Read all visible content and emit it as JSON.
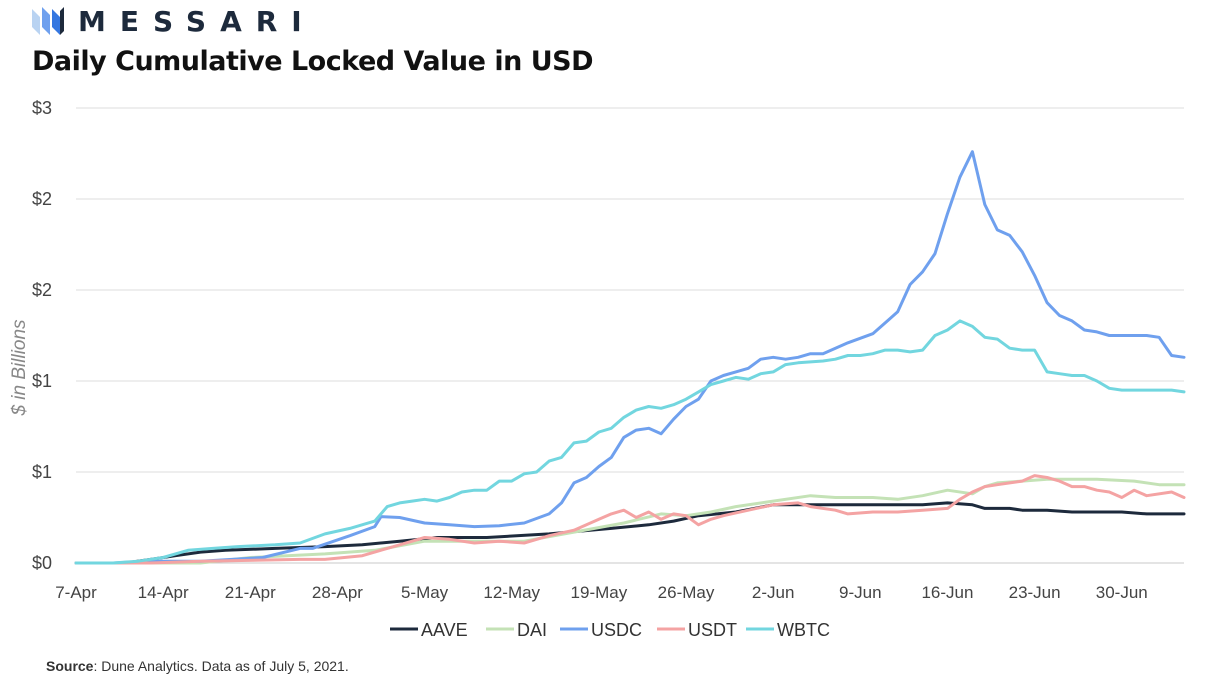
{
  "brand": {
    "name": "MESSARI",
    "logo_icon": "messari-logo-icon"
  },
  "title": "Daily Cumulative Locked Value in USD",
  "source": {
    "label": "Source",
    "text": ": Dune Analytics. Data as of July 5, 2021."
  },
  "colors": {
    "AAVE": "#1d2a3c",
    "DAI": "#c4e2b6",
    "USDC": "#6fa0ee",
    "USDT": "#f4a3a3",
    "WBTC": "#72d6df",
    "grid": "#dedede",
    "axis": "#c8c8c8"
  },
  "chart_data": {
    "type": "line",
    "title": "Daily Cumulative Locked Value in USD",
    "xlabel": "",
    "ylabel": "$ in Billions",
    "ylim": [
      0,
      2.5
    ],
    "y_ticks": [
      0,
      0.5,
      1.0,
      1.5,
      2.0,
      2.5
    ],
    "y_tick_labels": [
      "$0",
      "$1",
      "$1",
      "$2",
      "$2",
      "$3"
    ],
    "x_ticks": [
      0,
      7,
      14,
      21,
      28,
      35,
      42,
      49,
      56,
      63,
      70,
      77,
      84
    ],
    "x_tick_labels": [
      "7-Apr",
      "14-Apr",
      "21-Apr",
      "28-Apr",
      "5-May",
      "12-May",
      "19-May",
      "26-May",
      "2-Jun",
      "9-Jun",
      "16-Jun",
      "23-Jun",
      "30-Jun"
    ],
    "x_range": [
      0,
      89
    ],
    "legend": [
      "AAVE",
      "DAI",
      "USDC",
      "USDT",
      "WBTC"
    ],
    "legend_position": "bottom",
    "series": [
      {
        "name": "AAVE",
        "color": "#1d2a3c",
        "points": [
          [
            0,
            0
          ],
          [
            4,
            0
          ],
          [
            6,
            0.02
          ],
          [
            8,
            0.04
          ],
          [
            10,
            0.06
          ],
          [
            12,
            0.07
          ],
          [
            16,
            0.08
          ],
          [
            20,
            0.09
          ],
          [
            23,
            0.1
          ],
          [
            26,
            0.12
          ],
          [
            29,
            0.14
          ],
          [
            33,
            0.14
          ],
          [
            38,
            0.16
          ],
          [
            43,
            0.19
          ],
          [
            46,
            0.21
          ],
          [
            48,
            0.23
          ],
          [
            50,
            0.26
          ],
          [
            53,
            0.28
          ],
          [
            56,
            0.32
          ],
          [
            60,
            0.32
          ],
          [
            64,
            0.32
          ],
          [
            68,
            0.32
          ],
          [
            70,
            0.33
          ],
          [
            72,
            0.32
          ],
          [
            73,
            0.3
          ],
          [
            75,
            0.3
          ],
          [
            76,
            0.29
          ],
          [
            78,
            0.29
          ],
          [
            80,
            0.28
          ],
          [
            84,
            0.28
          ],
          [
            86,
            0.27
          ],
          [
            88,
            0.27
          ],
          [
            89,
            0.27
          ]
        ]
      },
      {
        "name": "DAI",
        "color": "#c4e2b6",
        "points": [
          [
            0,
            0
          ],
          [
            10,
            0
          ],
          [
            14,
            0.03
          ],
          [
            20,
            0.05
          ],
          [
            24,
            0.07
          ],
          [
            28,
            0.12
          ],
          [
            33,
            0.12
          ],
          [
            36,
            0.12
          ],
          [
            40,
            0.17
          ],
          [
            44,
            0.22
          ],
          [
            47,
            0.27
          ],
          [
            49,
            0.26
          ],
          [
            51,
            0.28
          ],
          [
            53,
            0.31
          ],
          [
            56,
            0.34
          ],
          [
            59,
            0.37
          ],
          [
            61,
            0.36
          ],
          [
            64,
            0.36
          ],
          [
            66,
            0.35
          ],
          [
            68,
            0.37
          ],
          [
            70,
            0.4
          ],
          [
            72,
            0.38
          ],
          [
            73,
            0.42
          ],
          [
            74,
            0.44
          ],
          [
            76,
            0.45
          ],
          [
            78,
            0.46
          ],
          [
            82,
            0.46
          ],
          [
            85,
            0.45
          ],
          [
            87,
            0.43
          ],
          [
            89,
            0.43
          ]
        ]
      },
      {
        "name": "USDC",
        "color": "#6fa0ee",
        "points": [
          [
            0,
            0
          ],
          [
            3,
            0
          ],
          [
            6,
            0.01
          ],
          [
            10,
            0.01
          ],
          [
            15,
            0.03
          ],
          [
            18,
            0.08
          ],
          [
            19,
            0.08
          ],
          [
            22,
            0.15
          ],
          [
            24,
            0.2
          ],
          [
            24.5,
            0.255
          ],
          [
            26,
            0.25
          ],
          [
            28,
            0.22
          ],
          [
            30,
            0.21
          ],
          [
            32,
            0.2
          ],
          [
            34,
            0.205
          ],
          [
            36,
            0.22
          ],
          [
            38,
            0.27
          ],
          [
            39,
            0.33
          ],
          [
            40,
            0.44
          ],
          [
            41,
            0.47
          ],
          [
            42,
            0.53
          ],
          [
            43,
            0.58
          ],
          [
            44,
            0.69
          ],
          [
            45,
            0.73
          ],
          [
            46,
            0.74
          ],
          [
            47,
            0.71
          ],
          [
            48,
            0.79
          ],
          [
            49,
            0.86
          ],
          [
            50,
            0.9
          ],
          [
            51,
            1.0
          ],
          [
            52,
            1.03
          ],
          [
            53,
            1.05
          ],
          [
            54,
            1.07
          ],
          [
            55,
            1.12
          ],
          [
            56,
            1.13
          ],
          [
            57,
            1.12
          ],
          [
            58,
            1.13
          ],
          [
            59,
            1.15
          ],
          [
            60,
            1.15
          ],
          [
            62,
            1.21
          ],
          [
            64,
            1.26
          ],
          [
            66,
            1.38
          ],
          [
            67,
            1.53
          ],
          [
            68,
            1.6
          ],
          [
            69,
            1.7
          ],
          [
            70,
            1.92
          ],
          [
            71,
            2.12
          ],
          [
            72,
            2.26
          ],
          [
            73,
            1.97
          ],
          [
            74,
            1.83
          ],
          [
            75,
            1.8
          ],
          [
            76,
            1.71
          ],
          [
            77,
            1.58
          ],
          [
            78,
            1.43
          ],
          [
            79,
            1.36
          ],
          [
            80,
            1.33
          ],
          [
            81,
            1.28
          ],
          [
            82,
            1.27
          ],
          [
            83,
            1.25
          ],
          [
            84,
            1.25
          ],
          [
            86,
            1.25
          ],
          [
            87,
            1.24
          ],
          [
            88,
            1.14
          ],
          [
            89,
            1.13
          ]
        ]
      },
      {
        "name": "USDT",
        "color": "#f4a3a3",
        "points": [
          [
            0,
            0
          ],
          [
            6,
            0
          ],
          [
            10,
            0.01
          ],
          [
            18,
            0.02
          ],
          [
            20,
            0.02
          ],
          [
            23,
            0.04
          ],
          [
            25,
            0.08
          ],
          [
            27,
            0.12
          ],
          [
            28,
            0.14
          ],
          [
            30,
            0.13
          ],
          [
            32,
            0.11
          ],
          [
            34,
            0.12
          ],
          [
            36,
            0.11
          ],
          [
            38,
            0.15
          ],
          [
            40,
            0.18
          ],
          [
            42,
            0.24
          ],
          [
            43,
            0.27
          ],
          [
            44,
            0.29
          ],
          [
            45,
            0.25
          ],
          [
            46,
            0.28
          ],
          [
            47,
            0.24
          ],
          [
            48,
            0.27
          ],
          [
            49,
            0.26
          ],
          [
            50,
            0.21
          ],
          [
            51,
            0.24
          ],
          [
            52,
            0.26
          ],
          [
            54,
            0.29
          ],
          [
            56,
            0.32
          ],
          [
            58,
            0.33
          ],
          [
            59,
            0.31
          ],
          [
            61,
            0.29
          ],
          [
            62,
            0.27
          ],
          [
            64,
            0.28
          ],
          [
            66,
            0.28
          ],
          [
            68,
            0.29
          ],
          [
            70,
            0.3
          ],
          [
            71,
            0.35
          ],
          [
            72,
            0.39
          ],
          [
            73,
            0.42
          ],
          [
            74,
            0.43
          ],
          [
            75,
            0.44
          ],
          [
            76,
            0.45
          ],
          [
            77,
            0.48
          ],
          [
            78,
            0.47
          ],
          [
            79,
            0.45
          ],
          [
            80,
            0.42
          ],
          [
            81,
            0.42
          ],
          [
            82,
            0.4
          ],
          [
            83,
            0.39
          ],
          [
            84,
            0.36
          ],
          [
            85,
            0.4
          ],
          [
            86,
            0.37
          ],
          [
            88,
            0.39
          ],
          [
            89,
            0.36
          ]
        ]
      },
      {
        "name": "WBTC",
        "color": "#72d6df",
        "points": [
          [
            0,
            0
          ],
          [
            3,
            0
          ],
          [
            5,
            0.01
          ],
          [
            7,
            0.03
          ],
          [
            9,
            0.07
          ],
          [
            11,
            0.08
          ],
          [
            13,
            0.09
          ],
          [
            16,
            0.1
          ],
          [
            18,
            0.11
          ],
          [
            20,
            0.16
          ],
          [
            22,
            0.19
          ],
          [
            24,
            0.23
          ],
          [
            25,
            0.31
          ],
          [
            26,
            0.33
          ],
          [
            27,
            0.34
          ],
          [
            28,
            0.35
          ],
          [
            29,
            0.34
          ],
          [
            30,
            0.36
          ],
          [
            31,
            0.39
          ],
          [
            32,
            0.4
          ],
          [
            33,
            0.4
          ],
          [
            34,
            0.45
          ],
          [
            35,
            0.45
          ],
          [
            36,
            0.49
          ],
          [
            37,
            0.5
          ],
          [
            38,
            0.56
          ],
          [
            39,
            0.58
          ],
          [
            40,
            0.66
          ],
          [
            41,
            0.67
          ],
          [
            42,
            0.72
          ],
          [
            43,
            0.74
          ],
          [
            44,
            0.8
          ],
          [
            45,
            0.84
          ],
          [
            46,
            0.86
          ],
          [
            47,
            0.85
          ],
          [
            48,
            0.87
          ],
          [
            49,
            0.9
          ],
          [
            50,
            0.94
          ],
          [
            51,
            0.98
          ],
          [
            52,
            1.0
          ],
          [
            53,
            1.02
          ],
          [
            54,
            1.01
          ],
          [
            55,
            1.04
          ],
          [
            56,
            1.05
          ],
          [
            57,
            1.09
          ],
          [
            58,
            1.1
          ],
          [
            60,
            1.11
          ],
          [
            61,
            1.12
          ],
          [
            62,
            1.14
          ],
          [
            63,
            1.14
          ],
          [
            64,
            1.15
          ],
          [
            65,
            1.17
          ],
          [
            66,
            1.17
          ],
          [
            67,
            1.16
          ],
          [
            68,
            1.17
          ],
          [
            69,
            1.25
          ],
          [
            70,
            1.28
          ],
          [
            71,
            1.33
          ],
          [
            72,
            1.3
          ],
          [
            73,
            1.24
          ],
          [
            74,
            1.23
          ],
          [
            75,
            1.18
          ],
          [
            76,
            1.17
          ],
          [
            77,
            1.17
          ],
          [
            78,
            1.05
          ],
          [
            79,
            1.04
          ],
          [
            80,
            1.03
          ],
          [
            81,
            1.03
          ],
          [
            82,
            1.0
          ],
          [
            83,
            0.96
          ],
          [
            84,
            0.95
          ],
          [
            85,
            0.95
          ],
          [
            86,
            0.95
          ],
          [
            87,
            0.95
          ],
          [
            88,
            0.95
          ],
          [
            89,
            0.94
          ]
        ]
      }
    ]
  }
}
